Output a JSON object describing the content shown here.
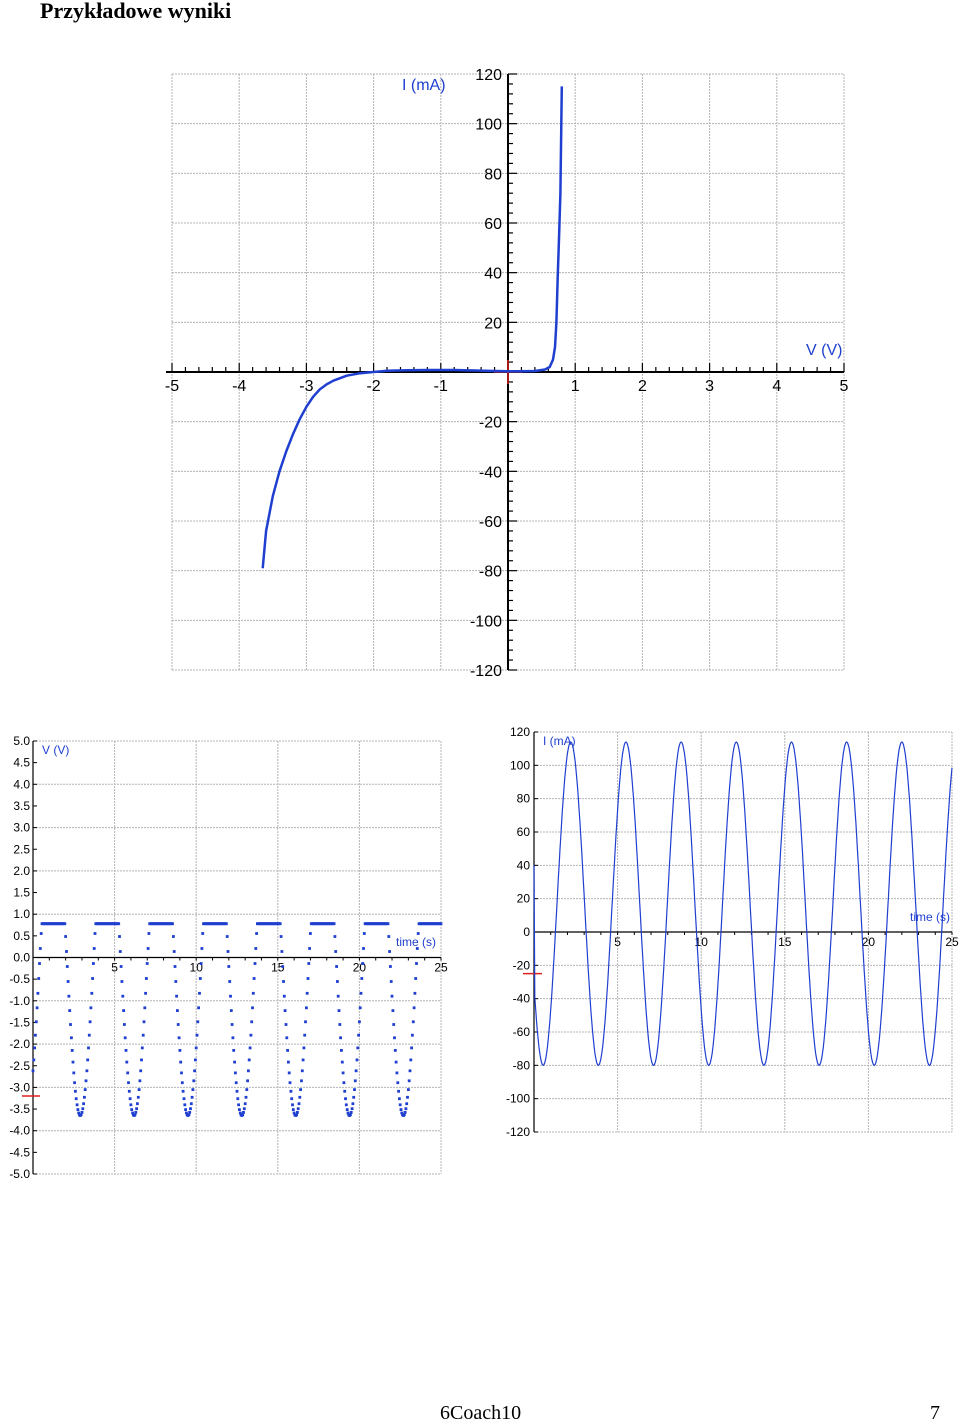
{
  "page": {
    "title": "Przykładowe wyniki",
    "footer_left": "6Coach10",
    "footer_right": "7"
  },
  "colors": {
    "series": "#1f3fd0",
    "marker": "#e02020",
    "grid": "#b4b4b4"
  },
  "chart_data": [
    {
      "type": "line",
      "x_label": "V (V)",
      "y_label": "I (mA)",
      "xlim": [
        -5,
        5
      ],
      "ylim": [
        -120,
        120
      ],
      "x_ticks": [
        -5,
        -4,
        -3,
        -2,
        -1,
        1,
        2,
        3,
        4,
        5
      ],
      "y_ticks": [
        120,
        100,
        80,
        60,
        40,
        20,
        -20,
        -40,
        -60,
        -80,
        -100,
        -120
      ],
      "grid": true,
      "series": [
        {
          "x": [
            -3.65,
            -3.6,
            -3.5,
            -3.4,
            -3.3,
            -3.2,
            -3.1,
            -3.0,
            -2.9,
            -2.8,
            -2.7,
            -2.6,
            -2.5,
            -2.4,
            -2.2,
            -2.0,
            -1.8,
            -1.5,
            -1.2,
            -1.0,
            -0.8,
            -0.5,
            -0.2,
            0.0,
            0.2,
            0.4,
            0.55,
            0.62,
            0.67,
            0.7,
            0.72,
            0.74,
            0.76,
            0.78,
            0.8
          ],
          "y": [
            -79,
            -64,
            -50,
            -40,
            -32,
            -25,
            -19,
            -14,
            -10,
            -7,
            -5,
            -3.5,
            -2.5,
            -1.5,
            -0.5,
            0,
            0.5,
            0.7,
            0.8,
            0.8,
            0.8,
            0.6,
            0.4,
            0.3,
            0.3,
            0.4,
            1,
            2,
            5,
            10,
            20,
            38,
            55,
            72,
            115
          ]
        }
      ]
    },
    {
      "type": "scatter",
      "y_label": "V (V)",
      "x_label": "time (s)",
      "xlim": [
        0,
        25
      ],
      "ylim": [
        -5,
        5
      ],
      "x_ticks": [
        5,
        10,
        15,
        20,
        25
      ],
      "y_ticks": [
        "5.0",
        "4.5",
        "4.0",
        "3.5",
        "3.0",
        "2.5",
        "2.0",
        "1.5",
        "1.0",
        "0.5",
        "0.0",
        "-0.5",
        "-1.0",
        "-1.5",
        "-2.0",
        "-2.5",
        "-3.0",
        "-3.5",
        "-4.0",
        "-4.5",
        "-5.0"
      ],
      "grid": true,
      "signal": {
        "period_s": 3.3,
        "phase_s": 0.42,
        "amplitude_V": 3.65,
        "upper_clip_V": 0.78,
        "lower_min_V": -3.65,
        "sample_step_s": 0.05
      }
    },
    {
      "type": "line",
      "y_label": "I (mA)",
      "x_label": "time (s)",
      "xlim": [
        0,
        25
      ],
      "ylim": [
        -120,
        120
      ],
      "x_ticks": [
        5,
        10,
        15,
        20,
        25
      ],
      "y_ticks": [
        120,
        100,
        80,
        60,
        40,
        20,
        0,
        -20,
        -40,
        -60,
        -80,
        -100,
        -120
      ],
      "grid": true,
      "signal": {
        "period_s": 3.3,
        "peak_time_s": 2.2,
        "max_mA": 114,
        "min_mA": -80
      }
    }
  ]
}
